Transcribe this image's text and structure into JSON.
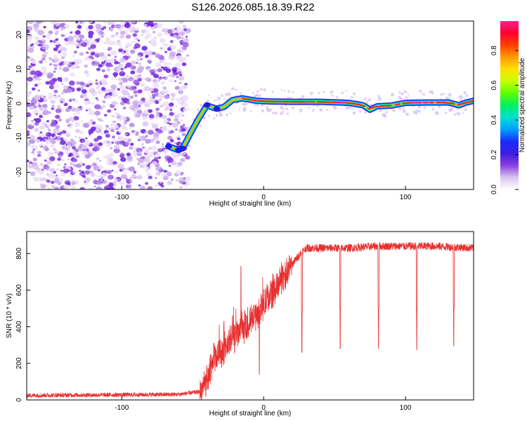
{
  "title": "S126.2026.085.18.39.R22",
  "chart_data": [
    {
      "type": "heatmap",
      "xlabel": "Height of straight line (km)",
      "ylabel": "Frequency (Hz)",
      "xlim": [
        -167,
        148
      ],
      "ylim": [
        -25,
        24
      ],
      "x_ticks": [
        {
          "v": -100,
          "t": "-100"
        },
        {
          "v": 0,
          "t": "0"
        },
        {
          "v": 100,
          "t": "100"
        }
      ],
      "y_ticks": [
        {
          "v": -20,
          "t": "-20"
        },
        {
          "v": -10,
          "t": "-10"
        },
        {
          "v": 0,
          "t": "0"
        },
        {
          "v": 10,
          "t": "10"
        },
        {
          "v": 20,
          "t": "20"
        }
      ],
      "noise_region": {
        "x_from": -167,
        "x_to": -56
      },
      "ridge": {
        "x": [
          -67,
          -60,
          -57,
          -52,
          -46,
          -40,
          -37,
          -33,
          -28,
          -22,
          -15,
          -5,
          5,
          20,
          40,
          60,
          70,
          75,
          80,
          90,
          100,
          115,
          130,
          138,
          142,
          148
        ],
        "y": [
          -12.5,
          -13.5,
          -13.0,
          -9.0,
          -4.5,
          -0.5,
          -1.0,
          -1.5,
          -1.0,
          1.0,
          1.5,
          0.8,
          0.6,
          0.5,
          0.5,
          0.2,
          -0.5,
          -1.8,
          -0.8,
          -0.6,
          0.2,
          0.3,
          0.3,
          -0.5,
          0.2,
          0.8
        ]
      },
      "colorbar": {
        "label": "Normalized spectral amplitude",
        "ticks": [
          {
            "v": 0.0,
            "t": "0.0"
          },
          {
            "v": 0.2,
            "t": "0.2"
          },
          {
            "v": 0.4,
            "t": "0.4"
          },
          {
            "v": 0.6,
            "t": "0.6"
          },
          {
            "v": 0.8,
            "t": "0.8"
          }
        ],
        "colors": [
          "#ffffff",
          "#d9c4f0",
          "#8a3fe0",
          "#3a1ee0",
          "#1b2cff",
          "#00a0ff",
          "#00e0d0",
          "#00f060",
          "#5cff00",
          "#c8ff00",
          "#ffe000",
          "#ff9a00",
          "#ff4000",
          "#ff0030",
          "#ff1f8c"
        ]
      }
    },
    {
      "type": "line",
      "xlabel": "Height of straight line (km)",
      "ylabel": "SNR (10 * v/v)",
      "xlim": [
        -167,
        148
      ],
      "ylim": [
        0,
        920
      ],
      "x_ticks": [
        {
          "v": -100,
          "t": "-100"
        },
        {
          "v": 0,
          "t": "0"
        },
        {
          "v": 100,
          "t": "100"
        }
      ],
      "y_ticks": [
        {
          "v": 0,
          "t": "0"
        },
        {
          "v": 200,
          "t": "200"
        },
        {
          "v": 400,
          "t": "400"
        },
        {
          "v": 600,
          "t": "600"
        },
        {
          "v": 800,
          "t": "800"
        }
      ],
      "color": "#e83030",
      "series_envelope": {
        "x": [
          -167,
          -60,
          -45,
          -40,
          -36,
          -30,
          -24,
          -18,
          -12,
          -6,
          0,
          6,
          12,
          18,
          22,
          26,
          30,
          40,
          60,
          80,
          100,
          120,
          148
        ],
        "y": [
          25,
          30,
          45,
          100,
          210,
          260,
          320,
          360,
          400,
          460,
          520,
          590,
          650,
          720,
          760,
          800,
          830,
          830,
          830,
          840,
          840,
          840,
          830
        ]
      },
      "spikes": [
        {
          "x": -35,
          "y": 310
        },
        {
          "x": -28,
          "y": 430
        },
        {
          "x": -22,
          "y": 460
        },
        {
          "x": -16,
          "y": 730
        },
        {
          "x": -12,
          "y": 380
        },
        {
          "x": -6,
          "y": 480
        },
        {
          "x": -3,
          "y": 140
        }
      ],
      "dips": [
        {
          "x": 27,
          "y": 260
        },
        {
          "x": 54,
          "y": 280
        },
        {
          "x": 81,
          "y": 280
        },
        {
          "x": 108,
          "y": 275
        },
        {
          "x": 134,
          "y": 295
        }
      ]
    }
  ]
}
